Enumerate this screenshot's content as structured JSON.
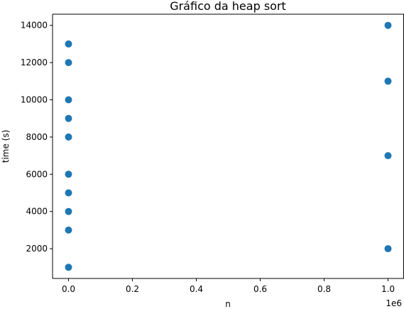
{
  "chart_data": {
    "type": "scatter",
    "title": "Gráfico da heap sort",
    "xlabel": "n",
    "ylabel": "time (s)",
    "x_offset_label": "1e6",
    "xlim": [
      -50000,
      1050000
    ],
    "ylim": [
      400,
      14600
    ],
    "x_ticks": [
      0,
      200000,
      400000,
      600000,
      800000,
      1000000
    ],
    "x_tick_labels": [
      "0.0",
      "0.2",
      "0.4",
      "0.6",
      "0.8",
      "1.0"
    ],
    "y_ticks": [
      2000,
      4000,
      6000,
      8000,
      10000,
      12000,
      14000
    ],
    "y_tick_labels": [
      "2000",
      "4000",
      "6000",
      "8000",
      "10000",
      "12000",
      "14000"
    ],
    "grid": false,
    "marker_color": "#1f77b4",
    "series": [
      {
        "points": [
          {
            "x": 0,
            "y": 1000
          },
          {
            "x": 0,
            "y": 3000
          },
          {
            "x": 0,
            "y": 4000
          },
          {
            "x": 0,
            "y": 5000
          },
          {
            "x": 0,
            "y": 6000
          },
          {
            "x": 0,
            "y": 8000
          },
          {
            "x": 0,
            "y": 9000
          },
          {
            "x": 0,
            "y": 10000
          },
          {
            "x": 0,
            "y": 12000
          },
          {
            "x": 0,
            "y": 13000
          },
          {
            "x": 1000000,
            "y": 2000
          },
          {
            "x": 1000000,
            "y": 7000
          },
          {
            "x": 1000000,
            "y": 11000
          },
          {
            "x": 1000000,
            "y": 14000
          }
        ]
      }
    ]
  }
}
